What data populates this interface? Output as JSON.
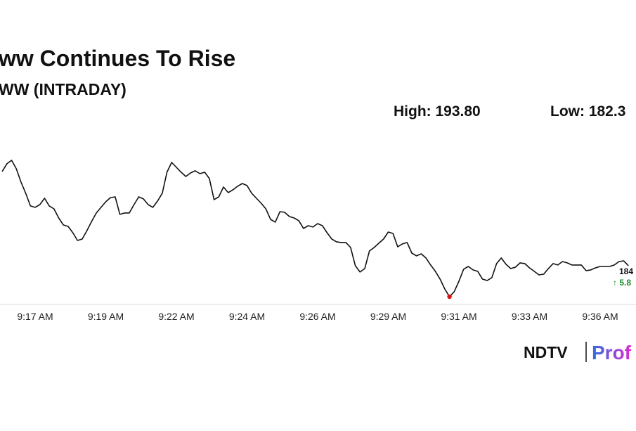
{
  "chart_data": {
    "type": "line",
    "title": "ww Continues To Rise",
    "subtitle": "WW (INTRADAY)",
    "high_label": "High: 193.80",
    "low_label": "Low: 182.3",
    "annotations": [
      {
        "text": "184",
        "color": "#111111"
      },
      {
        "text": "↑ 5.8",
        "color": "#1a8a2a"
      }
    ],
    "color": "#111111",
    "low_marker_color": "#e01010",
    "categories": [
      null,
      null,
      null,
      null,
      null,
      null,
      null,
      "9:17 AM",
      null,
      null,
      null,
      null,
      null,
      null,
      null,
      null,
      null,
      null,
      null,
      null,
      null,
      null,
      "9:19 AM",
      null,
      null,
      null,
      null,
      null,
      null,
      null,
      null,
      null,
      null,
      null,
      null,
      null,
      null,
      "9:22 AM",
      null,
      null,
      null,
      null,
      null,
      null,
      null,
      null,
      null,
      null,
      null,
      null,
      null,
      null,
      "9:24 AM",
      null,
      null,
      null,
      null,
      null,
      null,
      null,
      null,
      null,
      null,
      null,
      null,
      null,
      null,
      "9:26 AM",
      null,
      null,
      null,
      null,
      null,
      null,
      null,
      null,
      null,
      null,
      null,
      null,
      null,
      null,
      "9:29 AM",
      null,
      null,
      null,
      null,
      null,
      null,
      null,
      null,
      null,
      null,
      null,
      null,
      null,
      null,
      "9:31 AM",
      null,
      null,
      null,
      null,
      null,
      null,
      null,
      null,
      null,
      null,
      null,
      null,
      null,
      null,
      "9:33 AM",
      null,
      null,
      null,
      null,
      null,
      null,
      null,
      null,
      null,
      null,
      null,
      null,
      null,
      null,
      "9:36 AM",
      null,
      null,
      null,
      null,
      null,
      null
    ],
    "values": [
      192.86,
      193.51,
      193.8,
      193.09,
      191.97,
      191.03,
      189.97,
      189.85,
      190.08,
      190.61,
      189.97,
      189.73,
      188.96,
      188.37,
      188.25,
      187.72,
      187.07,
      187.19,
      187.9,
      188.67,
      189.38,
      189.85,
      190.32,
      190.67,
      190.73,
      189.26,
      189.38,
      189.38,
      190.08,
      190.73,
      190.56,
      190.08,
      189.85,
      190.38,
      191.03,
      192.8,
      193.62,
      193.21,
      192.8,
      192.44,
      192.74,
      192.92,
      192.68,
      192.8,
      192.27,
      190.5,
      190.73,
      191.56,
      191.09,
      191.32,
      191.62,
      191.85,
      191.68,
      191.03,
      190.61,
      190.2,
      189.73,
      188.84,
      188.61,
      189.49,
      189.43,
      189.08,
      188.96,
      188.73,
      188.08,
      188.31,
      188.2,
      188.49,
      188.31,
      187.72,
      187.19,
      186.96,
      186.9,
      186.9,
      186.48,
      184.95,
      184.42,
      184.71,
      186.19,
      186.48,
      186.84,
      187.19,
      187.78,
      187.66,
      186.54,
      186.78,
      186.9,
      186.01,
      185.78,
      185.95,
      185.6,
      185.01,
      184.48,
      183.83,
      183.0,
      182.35,
      182.77,
      183.65,
      184.66,
      184.89,
      184.6,
      184.48,
      183.83,
      183.71,
      183.95,
      185.13,
      185.6,
      185.07,
      184.71,
      184.83,
      185.19,
      185.13,
      184.77,
      184.48,
      184.18,
      184.24,
      184.71,
      185.13,
      185.01,
      185.3,
      185.19,
      185.01,
      185.01,
      185.01,
      184.54,
      184.6,
      184.77,
      184.89,
      184.89,
      184.89,
      185.01,
      185.3,
      185.36,
      184.95
    ]
  },
  "logo": {
    "brand": "NDTV",
    "product": "Prof"
  }
}
